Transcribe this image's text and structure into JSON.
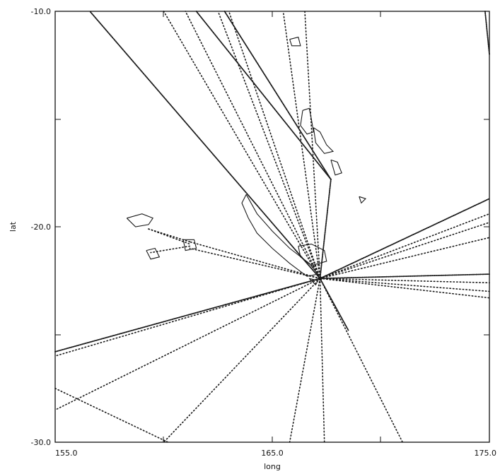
{
  "map": {
    "xlabel": "long",
    "ylabel": "lat",
    "x_ticks": [
      "155.0",
      "165.0",
      "175.0"
    ],
    "y_ticks": [
      "-10.0",
      "-20.0",
      "-30.0"
    ],
    "extent": {
      "lon": [
        155.0,
        175.0
      ],
      "lat": [
        -30.0,
        -10.0
      ]
    },
    "ink_color": "#1a1a1a",
    "hub": [
      167.2,
      -22.4
    ],
    "routes": [
      {
        "from": [
          167.2,
          -22.4
        ],
        "to": [
          156.6,
          -10.0
        ],
        "style": "dense"
      },
      {
        "from": [
          167.2,
          -22.4
        ],
        "to": [
          160.0,
          -10.0
        ],
        "style": "dotted"
      },
      {
        "from": [
          167.2,
          -22.4
        ],
        "to": [
          161.0,
          -10.0
        ],
        "style": "dotted"
      },
      {
        "from": [
          167.2,
          -22.4
        ],
        "to": [
          162.5,
          -10.0
        ],
        "style": "dotted"
      },
      {
        "from": [
          167.2,
          -22.4
        ],
        "to": [
          163.0,
          -10.0
        ],
        "style": "dotted"
      },
      {
        "from": [
          167.2,
          -22.4
        ],
        "to": [
          165.5,
          -10.0
        ],
        "style": "dotted"
      },
      {
        "from": [
          167.2,
          -22.4
        ],
        "to": [
          166.5,
          -10.0
        ],
        "style": "dotted"
      },
      {
        "from": [
          167.2,
          -22.4
        ],
        "to": [
          167.7,
          -17.8
        ],
        "style": "dense"
      },
      {
        "from": [
          167.7,
          -17.8
        ],
        "to": [
          161.5,
          -10.0
        ],
        "style": "dense"
      },
      {
        "from": [
          167.7,
          -17.8
        ],
        "to": [
          162.8,
          -10.0
        ],
        "style": "dense"
      },
      {
        "from": [
          167.2,
          -22.4
        ],
        "to": [
          175.0,
          -18.7
        ],
        "style": "dense"
      },
      {
        "from": [
          167.2,
          -22.4
        ],
        "to": [
          175.0,
          -19.4
        ],
        "style": "dotted"
      },
      {
        "from": [
          167.2,
          -22.4
        ],
        "to": [
          175.0,
          -19.8
        ],
        "style": "dotted"
      },
      {
        "from": [
          167.2,
          -22.4
        ],
        "to": [
          175.0,
          -20.5
        ],
        "style": "dotted"
      },
      {
        "from": [
          167.2,
          -22.4
        ],
        "to": [
          175.0,
          -22.2
        ],
        "style": "dense"
      },
      {
        "from": [
          167.2,
          -22.4
        ],
        "to": [
          175.0,
          -22.6
        ],
        "style": "dotted"
      },
      {
        "from": [
          167.2,
          -22.4
        ],
        "to": [
          175.0,
          -23.0
        ],
        "style": "dotted"
      },
      {
        "from": [
          167.2,
          -22.4
        ],
        "to": [
          175.0,
          -23.3
        ],
        "style": "dotted"
      },
      {
        "from": [
          167.2,
          -22.4
        ],
        "to": [
          155.0,
          -25.8
        ],
        "style": "dense"
      },
      {
        "from": [
          167.2,
          -22.4
        ],
        "to": [
          155.0,
          -26.0
        ],
        "style": "dotted"
      },
      {
        "from": [
          167.2,
          -22.4
        ],
        "to": [
          155.0,
          -28.5
        ],
        "style": "dotted"
      },
      {
        "from": [
          155.0,
          -27.5
        ],
        "to": [
          160.2,
          -30.0
        ],
        "style": "dotted"
      },
      {
        "from": [
          167.2,
          -22.4
        ],
        "to": [
          160.0,
          -30.0
        ],
        "style": "dotted"
      },
      {
        "from": [
          167.2,
          -22.4
        ],
        "to": [
          165.8,
          -30.0
        ],
        "style": "dotted"
      },
      {
        "from": [
          167.2,
          -22.4
        ],
        "to": [
          167.4,
          -30.0
        ],
        "style": "dotted"
      },
      {
        "from": [
          167.2,
          -22.4
        ],
        "to": [
          171.0,
          -30.0
        ],
        "style": "dotted"
      },
      {
        "from": [
          167.2,
          -22.4
        ],
        "to": [
          168.5,
          -24.8
        ],
        "style": "dense"
      },
      {
        "from": [
          167.2,
          -22.4
        ],
        "to": [
          161.2,
          -20.7
        ],
        "style": "dotted"
      },
      {
        "from": [
          167.2,
          -22.4
        ],
        "to": [
          161.2,
          -21.0
        ],
        "style": "dotted"
      },
      {
        "from": [
          161.2,
          -20.7
        ],
        "to": [
          159.3,
          -20.1
        ],
        "style": "dotted"
      },
      {
        "from": [
          161.2,
          -20.9
        ],
        "to": [
          159.4,
          -21.2
        ],
        "style": "dotted"
      },
      {
        "from": [
          159.3,
          -20.1
        ],
        "to": [
          161.2,
          -20.8
        ],
        "style": "dotted"
      },
      {
        "from": [
          174.8,
          -10.0
        ],
        "to": [
          175.0,
          -12.0
        ],
        "style": "dense"
      }
    ],
    "coastlines": [
      [
        [
          166.4,
          -14.6
        ],
        [
          166.7,
          -14.5
        ],
        [
          166.8,
          -15.0
        ],
        [
          166.9,
          -15.6
        ],
        [
          166.6,
          -15.7
        ],
        [
          166.3,
          -15.3
        ],
        [
          166.4,
          -14.6
        ]
      ],
      [
        [
          166.9,
          -15.4
        ],
        [
          167.2,
          -15.6
        ],
        [
          167.5,
          -16.2
        ],
        [
          167.8,
          -16.5
        ],
        [
          167.4,
          -16.6
        ],
        [
          167.0,
          -16.1
        ],
        [
          166.9,
          -15.4
        ]
      ],
      [
        [
          167.7,
          -16.9
        ],
        [
          168.0,
          -17.0
        ],
        [
          168.2,
          -17.5
        ],
        [
          167.9,
          -17.6
        ],
        [
          167.7,
          -16.9
        ]
      ],
      [
        [
          163.8,
          -18.5
        ],
        [
          164.3,
          -19.4
        ],
        [
          165.0,
          -20.2
        ],
        [
          165.8,
          -21.0
        ],
        [
          166.7,
          -21.7
        ],
        [
          167.1,
          -22.2
        ],
        [
          166.6,
          -22.3
        ],
        [
          165.8,
          -21.7
        ],
        [
          165.0,
          -21.0
        ],
        [
          164.3,
          -20.3
        ],
        [
          163.9,
          -19.6
        ],
        [
          163.6,
          -18.9
        ],
        [
          163.8,
          -18.5
        ]
      ],
      [
        [
          166.2,
          -20.9
        ],
        [
          166.8,
          -20.8
        ],
        [
          167.4,
          -21.1
        ],
        [
          167.5,
          -21.6
        ],
        [
          166.8,
          -21.8
        ],
        [
          166.3,
          -21.4
        ],
        [
          166.2,
          -20.9
        ]
      ],
      [
        [
          166.7,
          -22.4
        ],
        [
          167.1,
          -22.5
        ],
        [
          167.0,
          -22.7
        ],
        [
          166.7,
          -22.4
        ]
      ],
      [
        [
          158.3,
          -19.6
        ],
        [
          159.0,
          -19.4
        ],
        [
          159.5,
          -19.6
        ],
        [
          159.3,
          -19.9
        ],
        [
          158.7,
          -20.0
        ],
        [
          158.3,
          -19.6
        ]
      ],
      [
        [
          159.2,
          -21.1
        ],
        [
          159.6,
          -21.0
        ],
        [
          159.8,
          -21.4
        ],
        [
          159.4,
          -21.5
        ],
        [
          159.2,
          -21.1
        ]
      ],
      [
        [
          160.9,
          -20.6
        ],
        [
          161.4,
          -20.6
        ],
        [
          161.5,
          -21.0
        ],
        [
          161.0,
          -21.1
        ],
        [
          160.9,
          -20.6
        ]
      ],
      [
        [
          165.8,
          -11.3
        ],
        [
          166.2,
          -11.2
        ],
        [
          166.3,
          -11.6
        ],
        [
          165.9,
          -11.6
        ],
        [
          165.8,
          -11.3
        ]
      ],
      [
        [
          169.0,
          -18.6
        ],
        [
          169.3,
          -18.7
        ],
        [
          169.1,
          -18.9
        ],
        [
          169.0,
          -18.6
        ]
      ]
    ]
  }
}
